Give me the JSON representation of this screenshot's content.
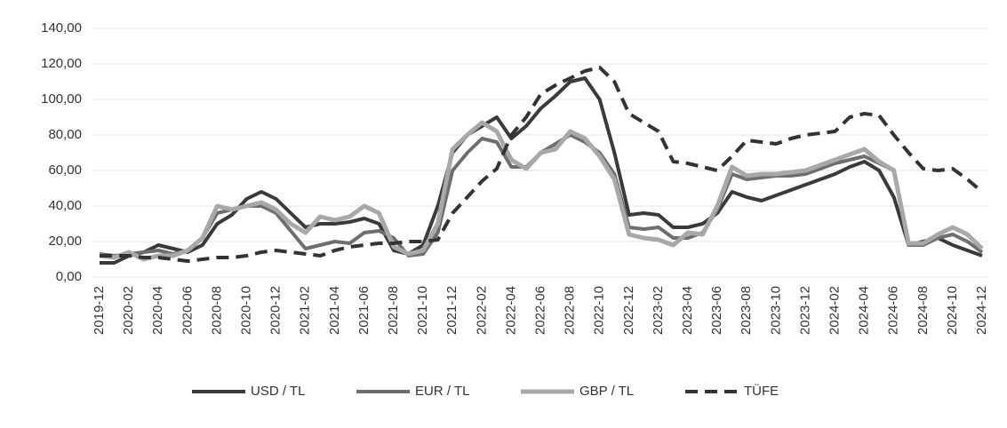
{
  "chart_data": {
    "type": "line",
    "categories": [
      "2019-12",
      null,
      "2020-02",
      null,
      "2020-04",
      null,
      "2020-06",
      null,
      "2020-08",
      null,
      "2020-10",
      null,
      "2020-12",
      null,
      "2021-02",
      null,
      "2021-04",
      null,
      "2021-06",
      null,
      "2021-08",
      null,
      "2021-10",
      null,
      "2021-12",
      null,
      "2022-02",
      null,
      "2022-04",
      null,
      "2022-06",
      null,
      "2022-08",
      null,
      "2022-10",
      null,
      "2022-12",
      null,
      "2023-02",
      null,
      "2023-04",
      null,
      "2023-06",
      null,
      "2023-08",
      null,
      "2023-10",
      null,
      "2023-12",
      null,
      "2024-02",
      null,
      "2024-04",
      null,
      "2024-06",
      null,
      "2024-08",
      null,
      "2024-10",
      null,
      "2024-12"
    ],
    "series": [
      {
        "name": "USD / TL",
        "color": "#3a3a3a",
        "width": 4,
        "dash": false,
        "values": [
          8,
          8,
          12,
          14,
          18,
          16,
          14,
          18,
          30,
          35,
          44,
          48,
          44,
          36,
          28,
          30,
          30,
          31,
          33,
          30,
          15,
          13,
          18,
          40,
          70,
          80,
          85,
          90,
          78,
          85,
          95,
          102,
          110,
          112,
          100,
          70,
          35,
          36,
          35,
          28,
          28,
          30,
          36,
          48,
          45,
          43,
          46,
          49,
          52,
          55,
          58,
          62,
          65,
          60,
          45,
          18,
          20,
          22,
          18,
          15,
          12
        ]
      },
      {
        "name": "EUR / TL",
        "color": "#6e6e6e",
        "width": 4,
        "dash": false,
        "values": [
          13,
          12,
          13,
          14,
          15,
          13,
          15,
          22,
          36,
          38,
          40,
          40,
          36,
          26,
          16,
          18,
          20,
          19,
          25,
          26,
          22,
          12,
          13,
          25,
          60,
          70,
          78,
          76,
          62,
          62,
          70,
          75,
          80,
          76,
          70,
          58,
          28,
          27,
          28,
          22,
          22,
          25,
          38,
          58,
          55,
          56,
          57,
          57,
          58,
          61,
          64,
          66,
          68,
          64,
          60,
          18,
          18,
          22,
          24,
          20,
          14
        ]
      },
      {
        "name": "GBP / TL",
        "color": "#a8a8a8",
        "width": 5,
        "dash": false,
        "values": [
          12,
          11,
          14,
          10,
          12,
          12,
          15,
          22,
          40,
          38,
          40,
          42,
          38,
          30,
          25,
          34,
          32,
          34,
          40,
          36,
          17,
          13,
          15,
          30,
          72,
          80,
          87,
          82,
          66,
          61,
          70,
          72,
          82,
          78,
          68,
          55,
          24,
          22,
          21,
          18,
          25,
          24,
          40,
          62,
          57,
          58,
          58,
          59,
          60,
          63,
          66,
          69,
          72,
          65,
          60,
          19,
          19,
          24,
          28,
          24,
          16
        ]
      },
      {
        "name": "TÜFE",
        "color": "#333333",
        "width": 4,
        "dash": true,
        "values": [
          12,
          12,
          12,
          11,
          11,
          10,
          9,
          10,
          11,
          11,
          12,
          14,
          15,
          14,
          13,
          12,
          15,
          17,
          18,
          19,
          19,
          20,
          20,
          21,
          36,
          45,
          54,
          61,
          80,
          90,
          103,
          108,
          112,
          116,
          118,
          110,
          92,
          87,
          82,
          65,
          64,
          62,
          60,
          68,
          77,
          76,
          75,
          78,
          80,
          81,
          82,
          90,
          92,
          91,
          80,
          70,
          61,
          60,
          61,
          55,
          48
        ]
      }
    ],
    "ylim": [
      0,
      140
    ],
    "yticks": [
      {
        "value": 0,
        "label": "0,00"
      },
      {
        "value": 20,
        "label": "20,00"
      },
      {
        "value": 40,
        "label": "40,00"
      },
      {
        "value": 60,
        "label": "60,00"
      },
      {
        "value": 80,
        "label": "80,00"
      },
      {
        "value": 100,
        "label": "100,00"
      },
      {
        "value": 120,
        "label": "120,00"
      },
      {
        "value": 140,
        "label": "140,00"
      }
    ],
    "grid": true,
    "legend": "bottom"
  }
}
